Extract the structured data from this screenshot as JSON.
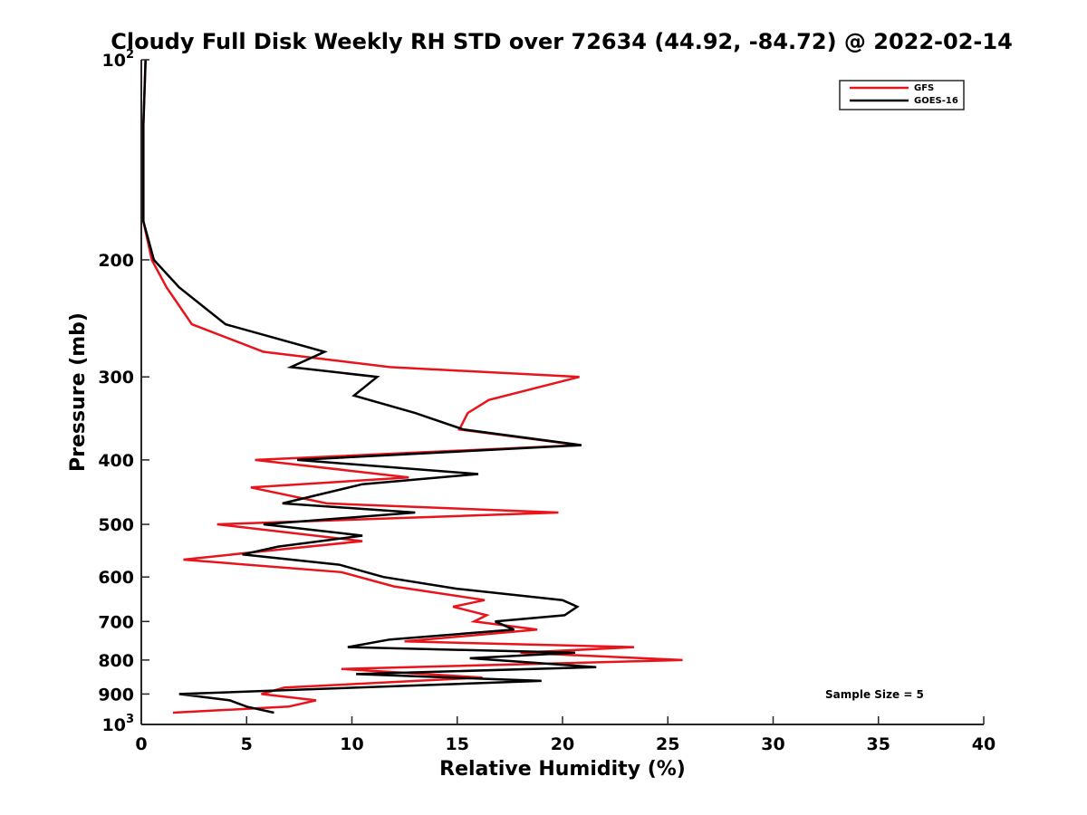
{
  "chart_data": {
    "type": "line",
    "title": "Cloudy Full Disk Weekly RH STD over 72634 (44.92, -84.72) @ 2022-02-14",
    "xlabel": "Relative Humidity (%)",
    "ylabel": "Pressure (mb)",
    "xlim": [
      0,
      40
    ],
    "ylim": [
      100,
      1000
    ],
    "y_scale": "log",
    "y_reversed": true,
    "x_ticks": [
      "0",
      "5",
      "10",
      "15",
      "20",
      "25",
      "30",
      "35",
      "40"
    ],
    "y_ticks": [
      {
        "value": 100,
        "base": "10",
        "exp": "2"
      },
      {
        "value": 200,
        "label": "200"
      },
      {
        "value": 300,
        "label": "300"
      },
      {
        "value": 400,
        "label": "400"
      },
      {
        "value": 500,
        "label": "500"
      },
      {
        "value": 600,
        "label": "600"
      },
      {
        "value": 700,
        "label": "700"
      },
      {
        "value": 800,
        "label": "800"
      },
      {
        "value": 900,
        "label": "900"
      },
      {
        "value": 1000,
        "base": "10",
        "exp": "3"
      }
    ],
    "legend_position": "top-right",
    "annotation": "Sample Size = 5",
    "series": [
      {
        "name": "GFS",
        "color": "#e8141b",
        "points": [
          [
            0.2,
            100
          ],
          [
            0.1,
            125
          ],
          [
            0.1,
            150
          ],
          [
            0.1,
            175
          ],
          [
            0.5,
            200
          ],
          [
            1.2,
            220
          ],
          [
            2.4,
            250
          ],
          [
            5.8,
            275
          ],
          [
            11.8,
            290
          ],
          [
            20.8,
            300
          ],
          [
            16.5,
            325
          ],
          [
            15.5,
            340
          ],
          [
            15.1,
            360
          ],
          [
            20.8,
            380
          ],
          [
            5.4,
            400
          ],
          [
            12.7,
            425
          ],
          [
            5.2,
            440
          ],
          [
            8.8,
            465
          ],
          [
            19.8,
            480
          ],
          [
            3.6,
            500
          ],
          [
            10.5,
            530
          ],
          [
            5.5,
            550
          ],
          [
            2.0,
            565
          ],
          [
            9.5,
            590
          ],
          [
            12.0,
            620
          ],
          [
            16.3,
            650
          ],
          [
            14.8,
            665
          ],
          [
            16.4,
            685
          ],
          [
            15.8,
            700
          ],
          [
            18.8,
            720
          ],
          [
            12.5,
            750
          ],
          [
            23.4,
            765
          ],
          [
            18.0,
            780
          ],
          [
            25.7,
            800
          ],
          [
            9.5,
            825
          ],
          [
            16.2,
            850
          ],
          [
            6.8,
            880
          ],
          [
            5.7,
            900
          ],
          [
            8.3,
            920
          ],
          [
            7.0,
            940
          ],
          [
            1.5,
            960
          ]
        ]
      },
      {
        "name": "GOES-16",
        "color": "#000000",
        "points": [
          [
            0.2,
            100
          ],
          [
            0.1,
            125
          ],
          [
            0.1,
            150
          ],
          [
            0.1,
            175
          ],
          [
            0.6,
            200
          ],
          [
            1.8,
            220
          ],
          [
            4.0,
            250
          ],
          [
            8.7,
            275
          ],
          [
            7.1,
            290
          ],
          [
            11.2,
            300
          ],
          [
            10.1,
            320
          ],
          [
            13.0,
            340
          ],
          [
            15.3,
            360
          ],
          [
            20.9,
            380
          ],
          [
            7.4,
            400
          ],
          [
            16.0,
            420
          ],
          [
            10.5,
            435
          ],
          [
            6.7,
            465
          ],
          [
            13.0,
            480
          ],
          [
            5.8,
            500
          ],
          [
            10.5,
            520
          ],
          [
            6.5,
            540
          ],
          [
            4.8,
            555
          ],
          [
            9.4,
            575
          ],
          [
            11.5,
            600
          ],
          [
            15.0,
            625
          ],
          [
            20.0,
            650
          ],
          [
            20.7,
            665
          ],
          [
            20.1,
            685
          ],
          [
            16.8,
            700
          ],
          [
            17.7,
            720
          ],
          [
            11.8,
            745
          ],
          [
            9.8,
            765
          ],
          [
            20.6,
            780
          ],
          [
            15.6,
            795
          ],
          [
            21.6,
            820
          ],
          [
            10.2,
            840
          ],
          [
            19.0,
            860
          ],
          [
            1.8,
            900
          ],
          [
            4.2,
            920
          ],
          [
            5.0,
            940
          ],
          [
            6.3,
            960
          ]
        ]
      }
    ]
  }
}
